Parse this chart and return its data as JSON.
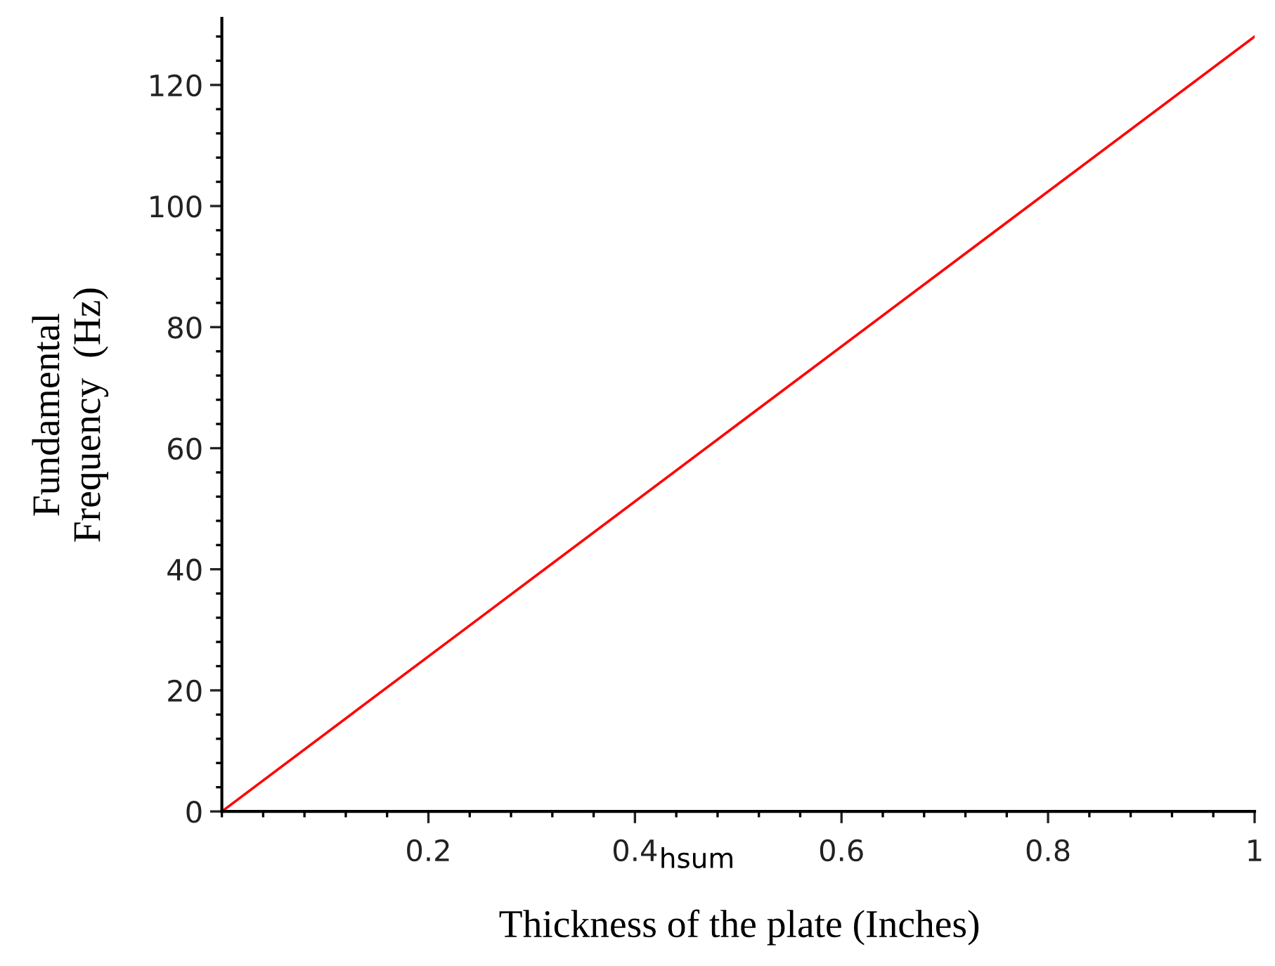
{
  "chart_data": {
    "type": "line",
    "xlabel": "hsum",
    "ylabel": "Fundamental\nFrequency  (Hz)",
    "annotations": [
      "Thickness of the plate (Inches)"
    ],
    "series": [
      {
        "color": "#ff0000",
        "x": [
          0,
          0.25,
          0.5,
          0.75,
          1
        ],
        "values": [
          0,
          32,
          64,
          96,
          128
        ]
      }
    ],
    "xlim": [
      0,
      1
    ],
    "ylim": [
      0,
      131
    ],
    "xticks": [
      0.2,
      0.4,
      0.6,
      0.8,
      1
    ],
    "yticks": [
      0,
      20,
      40,
      60,
      80,
      100,
      120
    ],
    "grid": false,
    "marker": "none",
    "line_style": "solid"
  }
}
